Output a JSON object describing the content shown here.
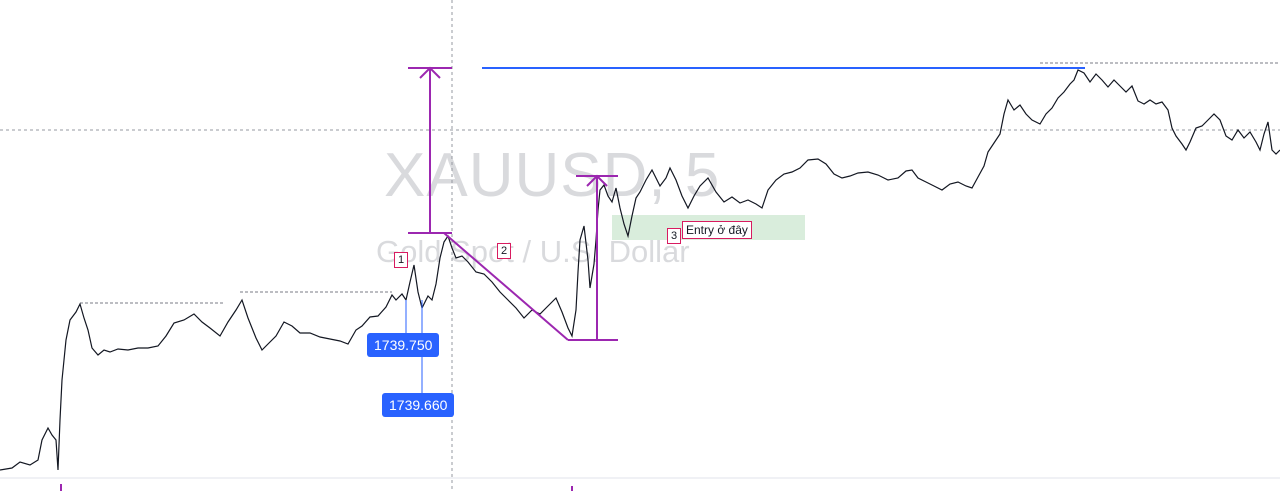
{
  "chart": {
    "watermark_symbol": "XAUUSD, 5",
    "watermark_description": "Gold Spot / U.S. Dollar",
    "price_labels": [
      "1739.750",
      "1739.660"
    ],
    "markers": [
      "1",
      "2",
      "3"
    ],
    "entry_text": "Entry ở đây"
  },
  "colors": {
    "candle": "#131722",
    "drawing": "#9c27b0",
    "horizontal_line": "#2962ff",
    "price_label_bg": "#2962ff",
    "marker_border": "#d81b60",
    "entry_zone": "#cfe8d3"
  }
}
